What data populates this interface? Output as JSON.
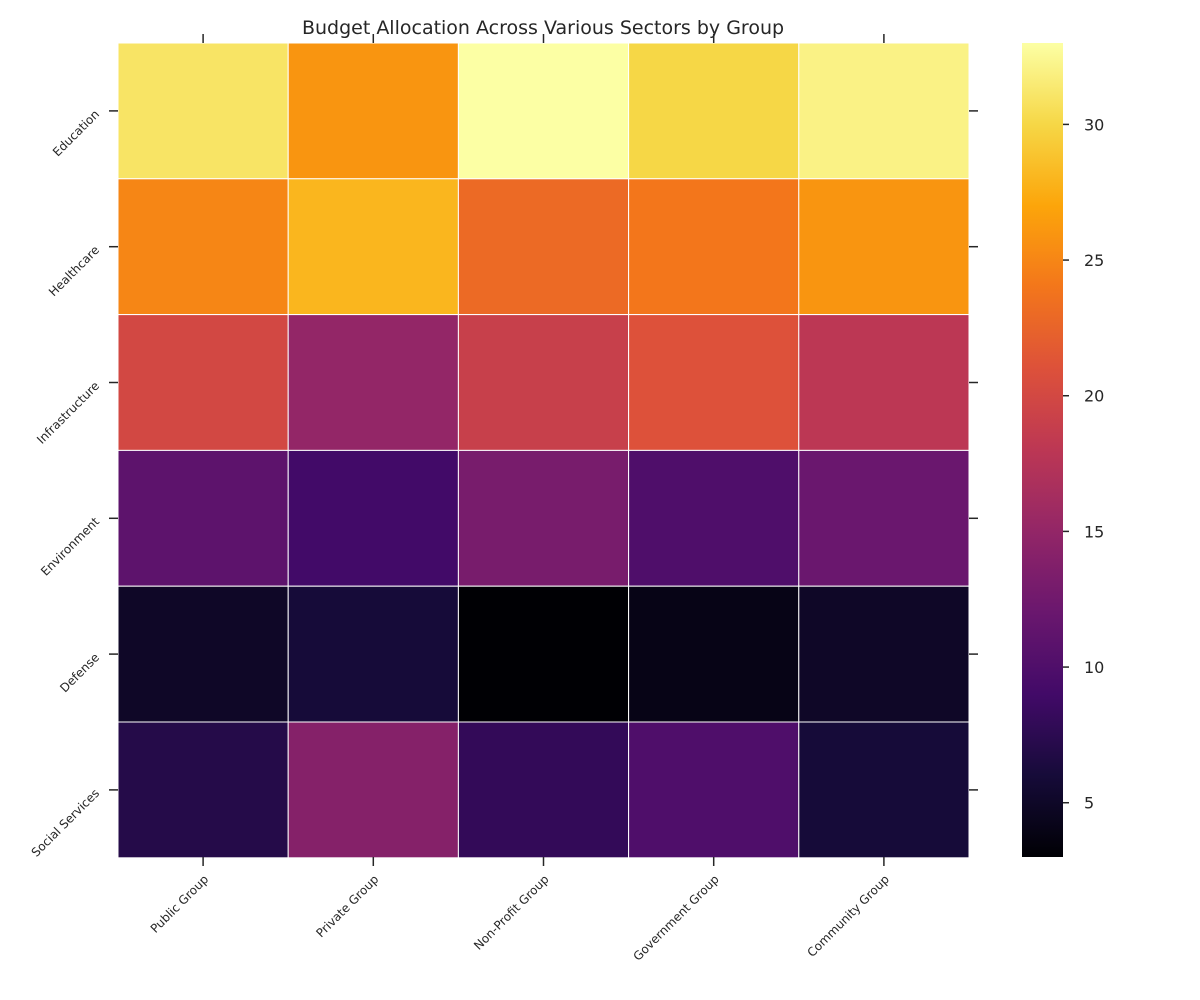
{
  "chart_data": {
    "type": "heatmap",
    "title": "Budget Allocation Across Various Sectors by Group",
    "xlabel": "",
    "ylabel": "",
    "x_categories": [
      "Public Group",
      "Private Group",
      "Non-Profit Group",
      "Government Group",
      "Community Group"
    ],
    "y_categories": [
      "Education",
      "Healthcare",
      "Infrastructure",
      "Environment",
      "Defense",
      "Social Services"
    ],
    "values": [
      [
        31,
        26,
        33,
        30,
        32
      ],
      [
        25,
        28,
        23,
        24,
        26
      ],
      [
        20,
        15,
        19,
        21,
        18
      ],
      [
        11,
        9,
        13,
        10,
        12
      ],
      [
        5,
        6,
        3,
        4,
        5
      ],
      [
        7,
        14,
        8,
        10,
        6
      ]
    ],
    "colormap": "inferno",
    "value_range": [
      3,
      33
    ],
    "colorbar_ticks": [
      5,
      10,
      15,
      20,
      25,
      30
    ],
    "grid": false,
    "colorbar_placement": "right"
  }
}
